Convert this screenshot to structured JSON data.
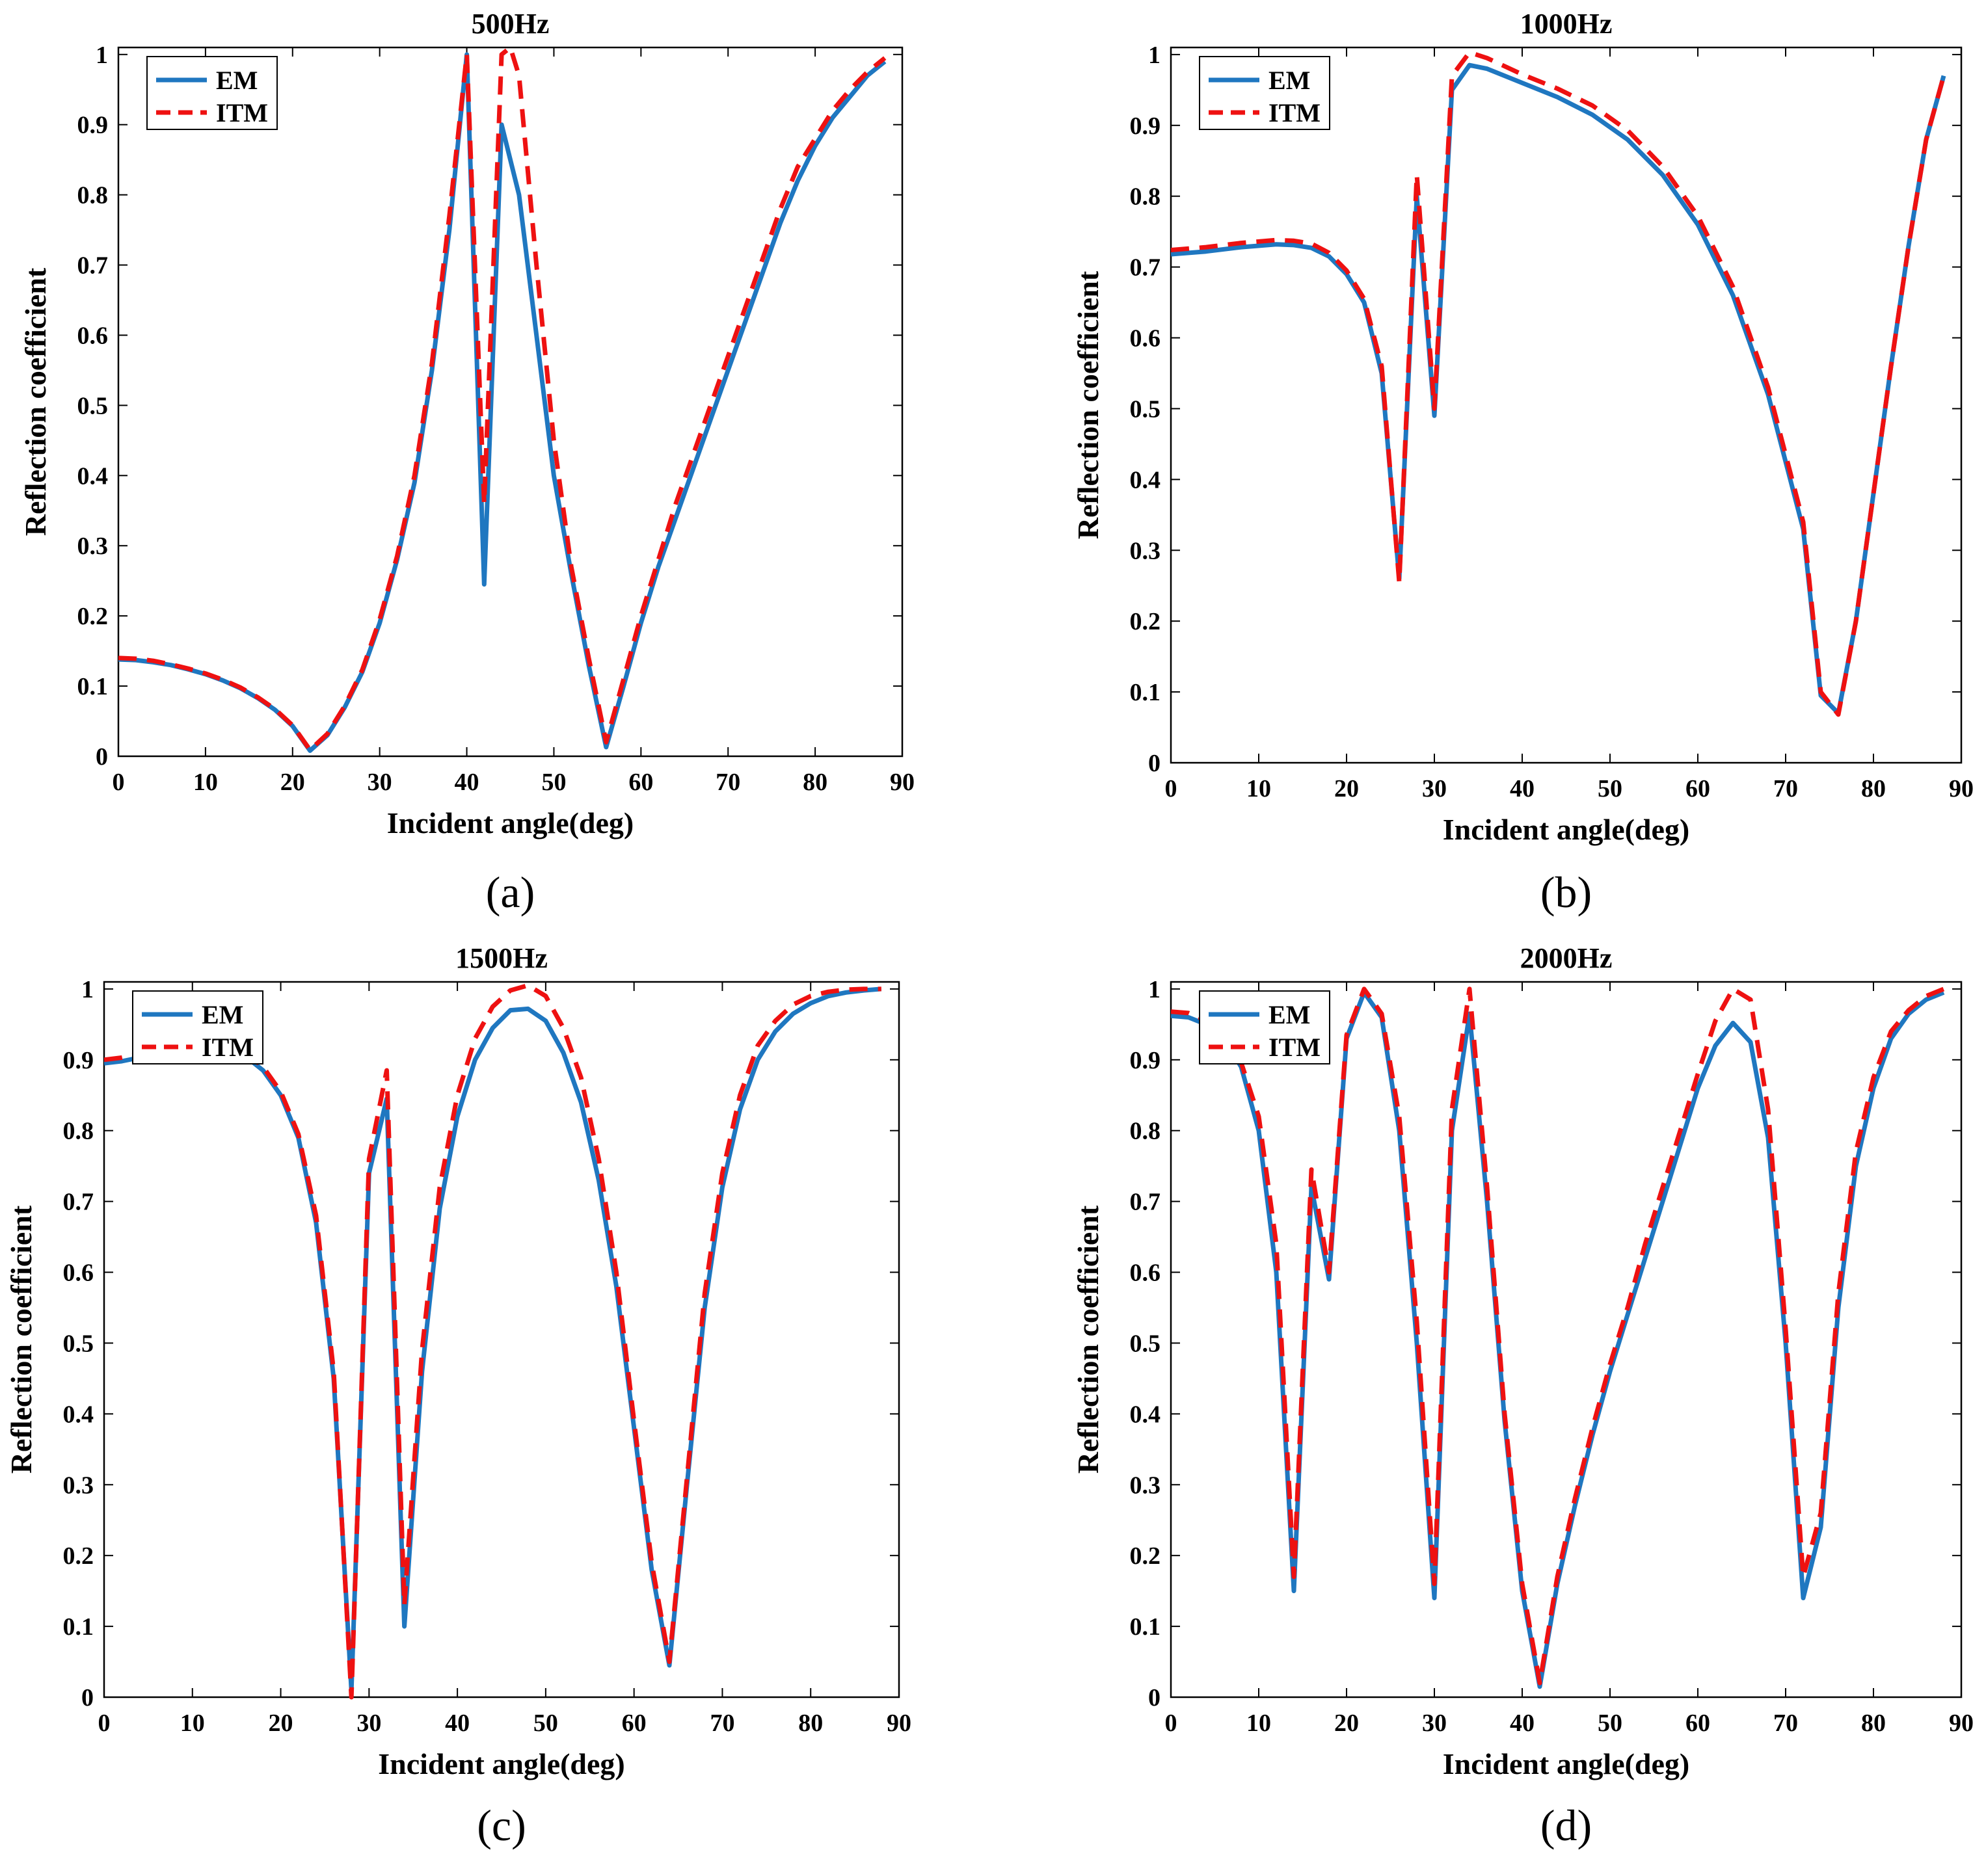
{
  "colors": {
    "EM": "#1f77c0",
    "ITM": "#ee1111",
    "axis": "#000000"
  },
  "chart_data": [
    {
      "type": "line",
      "panel_label": "(a)",
      "title": "500Hz",
      "xlabel": "Incident angle(deg)",
      "ylabel": "Reflection coefficient",
      "xlim": [
        0,
        90
      ],
      "ylim": [
        0,
        1.01
      ],
      "xticks": [
        "0",
        "10",
        "20",
        "30",
        "40",
        "50",
        "60",
        "70",
        "80",
        "90"
      ],
      "yticks": [
        "0",
        "0.1",
        "0.2",
        "0.3",
        "0.4",
        "0.5",
        "0.6",
        "0.7",
        "0.8",
        "0.9",
        "1"
      ],
      "legend": {
        "position": "top-left",
        "entries": [
          "EM",
          "ITM"
        ]
      },
      "series": [
        {
          "name": "EM",
          "style": "solid",
          "x": [
            0,
            2,
            4,
            6,
            8,
            10,
            12,
            14,
            16,
            18,
            20,
            22,
            24,
            26,
            28,
            30,
            32,
            34,
            36,
            38,
            40,
            42,
            44,
            46,
            48,
            50,
            52,
            54,
            56,
            58,
            60,
            62,
            64,
            66,
            68,
            70,
            72,
            74,
            76,
            78,
            80,
            82,
            84,
            86,
            88
          ],
          "y": [
            0.138,
            0.137,
            0.134,
            0.13,
            0.124,
            0.117,
            0.108,
            0.097,
            0.083,
            0.066,
            0.043,
            0.008,
            0.03,
            0.07,
            0.12,
            0.19,
            0.28,
            0.39,
            0.55,
            0.75,
            1.0,
            0.245,
            0.9,
            0.8,
            0.6,
            0.4,
            0.26,
            0.13,
            0.013,
            0.1,
            0.19,
            0.27,
            0.34,
            0.41,
            0.48,
            0.55,
            0.62,
            0.69,
            0.76,
            0.82,
            0.87,
            0.91,
            0.94,
            0.97,
            0.99
          ]
        },
        {
          "name": "ITM",
          "style": "dashed",
          "x": [
            0,
            2,
            4,
            6,
            8,
            10,
            12,
            14,
            16,
            18,
            20,
            22,
            24,
            26,
            28,
            30,
            32,
            34,
            36,
            38,
            40,
            42,
            44,
            45,
            46,
            48,
            50,
            52,
            54,
            56,
            58,
            60,
            62,
            64,
            66,
            68,
            70,
            72,
            74,
            76,
            78,
            80,
            82,
            84,
            86,
            88
          ],
          "y": [
            0.14,
            0.139,
            0.136,
            0.131,
            0.125,
            0.118,
            0.109,
            0.098,
            0.084,
            0.067,
            0.044,
            0.009,
            0.032,
            0.072,
            0.123,
            0.195,
            0.285,
            0.4,
            0.56,
            0.77,
            1.0,
            0.36,
            1.0,
            1.01,
            0.97,
            0.7,
            0.45,
            0.27,
            0.14,
            0.02,
            0.11,
            0.2,
            0.28,
            0.36,
            0.43,
            0.5,
            0.57,
            0.64,
            0.71,
            0.78,
            0.84,
            0.88,
            0.92,
            0.95,
            0.975,
            0.995
          ]
        }
      ]
    },
    {
      "type": "line",
      "panel_label": "(b)",
      "title": "1000Hz",
      "xlabel": "Incident angle(deg)",
      "ylabel": "Reflection coefficient",
      "xlim": [
        0,
        90
      ],
      "ylim": [
        0,
        1.01
      ],
      "xticks": [
        "0",
        "10",
        "20",
        "30",
        "40",
        "50",
        "60",
        "70",
        "80",
        "90"
      ],
      "yticks": [
        "0",
        "0.1",
        "0.2",
        "0.3",
        "0.4",
        "0.5",
        "0.6",
        "0.7",
        "0.8",
        "0.9",
        "1"
      ],
      "legend": {
        "position": "top-left",
        "entries": [
          "EM",
          "ITM"
        ]
      },
      "series": [
        {
          "name": "EM",
          "style": "solid",
          "x": [
            0,
            4,
            8,
            12,
            14,
            16,
            18,
            20,
            22,
            24,
            26,
            28,
            30,
            32,
            34,
            36,
            40,
            44,
            48,
            52,
            56,
            60,
            64,
            68,
            72,
            74,
            76,
            78,
            80,
            82,
            84,
            86,
            88
          ],
          "y": [
            0.718,
            0.722,
            0.728,
            0.732,
            0.731,
            0.727,
            0.715,
            0.69,
            0.65,
            0.55,
            0.26,
            0.8,
            0.49,
            0.95,
            0.985,
            0.98,
            0.96,
            0.94,
            0.915,
            0.88,
            0.83,
            0.76,
            0.66,
            0.52,
            0.33,
            0.095,
            0.07,
            0.2,
            0.38,
            0.56,
            0.73,
            0.88,
            0.97
          ]
        },
        {
          "name": "ITM",
          "style": "dashed",
          "x": [
            0,
            4,
            8,
            12,
            14,
            16,
            18,
            20,
            22,
            24,
            26,
            28,
            30,
            32,
            34,
            36,
            40,
            44,
            48,
            52,
            56,
            60,
            64,
            68,
            72,
            74,
            76,
            78,
            80,
            82,
            84,
            86,
            88
          ],
          "y": [
            0.724,
            0.728,
            0.734,
            0.738,
            0.737,
            0.733,
            0.72,
            0.695,
            0.655,
            0.56,
            0.255,
            0.83,
            0.5,
            0.97,
            1.003,
            0.995,
            0.972,
            0.952,
            0.928,
            0.893,
            0.842,
            0.772,
            0.672,
            0.53,
            0.34,
            0.1,
            0.068,
            0.2,
            0.38,
            0.56,
            0.73,
            0.88,
            0.97
          ]
        }
      ]
    },
    {
      "type": "line",
      "panel_label": "(c)",
      "title": "1500Hz",
      "xlabel": "Incident angle(deg)",
      "ylabel": "Reflection coefficient",
      "xlim": [
        0,
        90
      ],
      "ylim": [
        0,
        1.01
      ],
      "xticks": [
        "0",
        "10",
        "20",
        "30",
        "40",
        "50",
        "60",
        "70",
        "80",
        "90"
      ],
      "yticks": [
        "0",
        "0.1",
        "0.2",
        "0.3",
        "0.4",
        "0.5",
        "0.6",
        "0.7",
        "0.8",
        "0.9",
        "1"
      ],
      "legend": {
        "position": "top-left",
        "entries": [
          "EM",
          "ITM"
        ]
      },
      "series": [
        {
          "name": "EM",
          "style": "solid",
          "x": [
            0,
            2,
            4,
            6,
            8,
            10,
            12,
            14,
            16,
            18,
            20,
            22,
            24,
            26,
            28,
            30,
            32,
            34,
            36,
            38,
            40,
            42,
            44,
            46,
            48,
            50,
            52,
            54,
            56,
            58,
            60,
            62,
            64,
            66,
            68,
            70,
            72,
            74,
            76,
            78,
            80,
            82,
            84,
            86,
            88
          ],
          "y": [
            0.895,
            0.898,
            0.903,
            0.908,
            0.912,
            0.915,
            0.917,
            0.915,
            0.905,
            0.885,
            0.85,
            0.79,
            0.67,
            0.45,
            0.01,
            0.74,
            0.845,
            0.1,
            0.46,
            0.69,
            0.82,
            0.9,
            0.945,
            0.97,
            0.972,
            0.955,
            0.91,
            0.84,
            0.73,
            0.58,
            0.38,
            0.18,
            0.045,
            0.3,
            0.55,
            0.72,
            0.83,
            0.9,
            0.94,
            0.965,
            0.98,
            0.99,
            0.995,
            0.998,
            1.0
          ]
        },
        {
          "name": "ITM",
          "style": "dashed",
          "x": [
            0,
            2,
            4,
            6,
            8,
            10,
            12,
            14,
            16,
            18,
            20,
            22,
            24,
            26,
            28,
            30,
            32,
            34,
            36,
            38,
            40,
            42,
            44,
            46,
            48,
            50,
            52,
            54,
            56,
            58,
            60,
            62,
            64,
            66,
            68,
            70,
            72,
            74,
            76,
            78,
            80,
            82,
            84,
            86,
            88
          ],
          "y": [
            0.9,
            0.903,
            0.908,
            0.913,
            0.917,
            0.92,
            0.922,
            0.92,
            0.91,
            0.89,
            0.855,
            0.795,
            0.68,
            0.46,
            0.0,
            0.76,
            0.885,
            0.13,
            0.49,
            0.72,
            0.85,
            0.93,
            0.975,
            0.998,
            1.005,
            0.99,
            0.945,
            0.875,
            0.76,
            0.6,
            0.39,
            0.19,
            0.05,
            0.31,
            0.57,
            0.74,
            0.85,
            0.92,
            0.955,
            0.978,
            0.99,
            0.996,
            0.999,
            1.0,
            1.0
          ]
        }
      ]
    },
    {
      "type": "line",
      "panel_label": "(d)",
      "title": "2000Hz",
      "xlabel": "Incident angle(deg)",
      "ylabel": "Reflection coefficient",
      "xlim": [
        0,
        90
      ],
      "ylim": [
        0,
        1.01
      ],
      "xticks": [
        "0",
        "10",
        "20",
        "30",
        "40",
        "50",
        "60",
        "70",
        "80",
        "90"
      ],
      "yticks": [
        "0",
        "0.1",
        "0.2",
        "0.3",
        "0.4",
        "0.5",
        "0.6",
        "0.7",
        "0.8",
        "0.9",
        "1"
      ],
      "legend": {
        "position": "top-left",
        "entries": [
          "EM",
          "ITM"
        ]
      },
      "series": [
        {
          "name": "EM",
          "style": "solid",
          "x": [
            0,
            2,
            4,
            6,
            8,
            10,
            12,
            14,
            16,
            18,
            20,
            22,
            24,
            26,
            28,
            30,
            32,
            34,
            36,
            38,
            40,
            42,
            44,
            46,
            48,
            50,
            52,
            54,
            56,
            58,
            60,
            62,
            64,
            66,
            68,
            70,
            72,
            74,
            76,
            78,
            80,
            82,
            84,
            86,
            88
          ],
          "y": [
            0.962,
            0.96,
            0.95,
            0.93,
            0.89,
            0.8,
            0.6,
            0.15,
            0.72,
            0.59,
            0.93,
            0.995,
            0.96,
            0.8,
            0.5,
            0.14,
            0.8,
            0.965,
            0.7,
            0.39,
            0.15,
            0.015,
            0.16,
            0.27,
            0.37,
            0.46,
            0.54,
            0.62,
            0.7,
            0.78,
            0.86,
            0.92,
            0.952,
            0.925,
            0.79,
            0.5,
            0.14,
            0.24,
            0.55,
            0.75,
            0.86,
            0.93,
            0.965,
            0.985,
            0.995
          ]
        },
        {
          "name": "ITM",
          "style": "dashed",
          "x": [
            0,
            2,
            4,
            6,
            8,
            10,
            12,
            14,
            16,
            18,
            20,
            22,
            24,
            26,
            28,
            30,
            32,
            34,
            36,
            38,
            40,
            42,
            44,
            46,
            48,
            50,
            52,
            54,
            56,
            58,
            60,
            62,
            64,
            66,
            68,
            70,
            72,
            74,
            76,
            78,
            80,
            82,
            84,
            86,
            88
          ],
          "y": [
            0.968,
            0.966,
            0.956,
            0.936,
            0.896,
            0.82,
            0.64,
            0.17,
            0.745,
            0.6,
            0.935,
            1.0,
            0.965,
            0.82,
            0.53,
            0.16,
            0.83,
            1.0,
            0.72,
            0.4,
            0.16,
            0.02,
            0.17,
            0.28,
            0.38,
            0.47,
            0.55,
            0.64,
            0.72,
            0.8,
            0.88,
            0.955,
            1.0,
            0.985,
            0.83,
            0.52,
            0.17,
            0.26,
            0.57,
            0.77,
            0.875,
            0.94,
            0.97,
            0.99,
            1.0
          ]
        }
      ]
    }
  ]
}
